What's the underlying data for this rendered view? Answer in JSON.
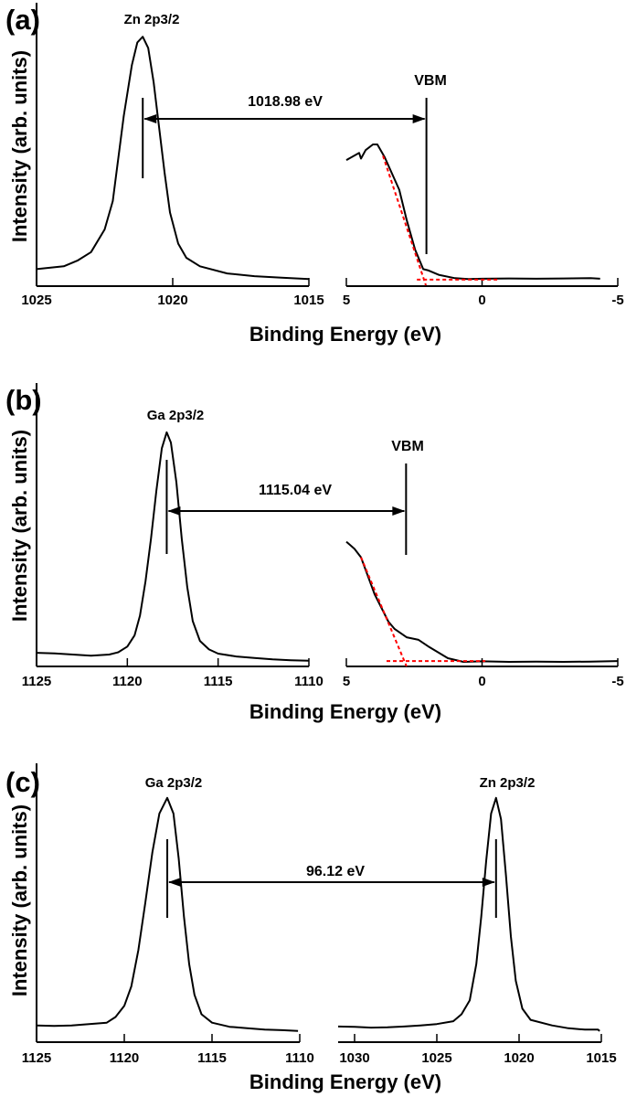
{
  "chart_data": [
    {
      "type": "line",
      "panel_label": "(a)",
      "xlabel": "Binding Energy (eV)",
      "ylabel": "Intensity (arb. units)",
      "grid": false,
      "subplots": [
        {
          "xlim": [
            1025,
            1015
          ],
          "ticks": [
            "1025",
            "1020",
            "1015"
          ],
          "tick_values": [
            1025,
            1020,
            1015
          ],
          "ylim": [
            0,
            1
          ],
          "series": [
            {
              "color": "#000000",
              "points": [
                [
                  1025,
                  0.06
                ],
                [
                  1024,
                  0.07
                ],
                [
                  1023.5,
                  0.09
                ],
                [
                  1023,
                  0.12
                ],
                [
                  1022.5,
                  0.2
                ],
                [
                  1022.2,
                  0.3
                ],
                [
                  1022,
                  0.45
                ],
                [
                  1021.8,
                  0.6
                ],
                [
                  1021.5,
                  0.78
                ],
                [
                  1021.3,
                  0.86
                ],
                [
                  1021.1,
                  0.88
                ],
                [
                  1020.9,
                  0.84
                ],
                [
                  1020.7,
                  0.72
                ],
                [
                  1020.5,
                  0.56
                ],
                [
                  1020.3,
                  0.4
                ],
                [
                  1020.1,
                  0.26
                ],
                [
                  1019.8,
                  0.15
                ],
                [
                  1019.5,
                  0.1
                ],
                [
                  1019,
                  0.07
                ],
                [
                  1018,
                  0.045
                ],
                [
                  1017,
                  0.035
                ],
                [
                  1016,
                  0.03
                ],
                [
                  1015,
                  0.025
                ]
              ]
            }
          ],
          "peak_label": "Zn 2p3/2",
          "marker_at": 1021.1
        },
        {
          "xlim": [
            5,
            -5
          ],
          "ticks": [
            "5",
            "0",
            "-5"
          ],
          "tick_values": [
            5,
            0,
            -5
          ],
          "ylim": [
            0,
            1
          ],
          "series": [
            {
              "color": "#000000",
              "points": [
                [
                  5.0,
                  0.445
                ],
                [
                  4.53,
                  0.47
                ],
                [
                  4.46,
                  0.45
                ],
                [
                  4.29,
                  0.48
                ],
                [
                  4.02,
                  0.5
                ],
                [
                  3.86,
                  0.5
                ],
                [
                  3.59,
                  0.455
                ],
                [
                  3.05,
                  0.34
                ],
                [
                  2.78,
                  0.235
                ],
                [
                  2.47,
                  0.13
                ],
                [
                  2.17,
                  0.06
                ],
                [
                  1.97,
                  0.055
                ],
                [
                  1.6,
                  0.04
                ],
                [
                  1.0,
                  0.028
                ],
                [
                  0.5,
                  0.025
                ],
                [
                  0,
                  0.026
                ],
                [
                  -1,
                  0.027
                ],
                [
                  -2,
                  0.026
                ],
                [
                  -3,
                  0.027
                ],
                [
                  -4,
                  0.028
                ],
                [
                  -4.35,
                  0.026
                ]
              ]
            }
          ],
          "fit_lines": [
            {
              "color": "#ff0000",
              "points": [
                [
                  3.65,
                  0.46
                ],
                [
                  2.07,
                  0.003
                ]
              ]
            },
            {
              "color": "#ff0000",
              "points": [
                [
                  2.4,
                  0.023
                ],
                [
                  -0.56,
                  0.023
                ]
              ]
            }
          ],
          "vbm_label": "VBM",
          "marker_at": 2.05
        }
      ],
      "arrow_label": "1018.98 eV"
    },
    {
      "type": "line",
      "panel_label": "(b)",
      "xlabel": "Binding Energy (eV)",
      "ylabel": "Intensity (arb. units)",
      "grid": false,
      "subplots": [
        {
          "xlim": [
            1125,
            1110
          ],
          "ticks": [
            "1125",
            "1120",
            "1115",
            "1110"
          ],
          "tick_values": [
            1125,
            1120,
            1115,
            1110
          ],
          "ylim": [
            0,
            1
          ],
          "series": [
            {
              "color": "#000000",
              "points": [
                [
                  1125,
                  0.048
                ],
                [
                  1124,
                  0.046
                ],
                [
                  1123,
                  0.042
                ],
                [
                  1122,
                  0.038
                ],
                [
                  1121,
                  0.042
                ],
                [
                  1120.5,
                  0.05
                ],
                [
                  1120,
                  0.07
                ],
                [
                  1119.6,
                  0.11
                ],
                [
                  1119.3,
                  0.18
                ],
                [
                  1119,
                  0.3
                ],
                [
                  1118.7,
                  0.45
                ],
                [
                  1118.4,
                  0.62
                ],
                [
                  1118.1,
                  0.77
                ],
                [
                  1117.83,
                  0.826
                ],
                [
                  1117.6,
                  0.79
                ],
                [
                  1117.3,
                  0.65
                ],
                [
                  1117,
                  0.45
                ],
                [
                  1116.7,
                  0.28
                ],
                [
                  1116.4,
                  0.16
                ],
                [
                  1116,
                  0.09
                ],
                [
                  1115.5,
                  0.06
                ],
                [
                  1115,
                  0.045
                ],
                [
                  1114,
                  0.035
                ],
                [
                  1113,
                  0.03
                ],
                [
                  1112,
                  0.025
                ],
                [
                  1111,
                  0.022
                ],
                [
                  1110,
                  0.02
                ]
              ]
            }
          ],
          "peak_label": "Ga 2p3/2",
          "marker_at": 1117.83
        },
        {
          "xlim": [
            5,
            -5
          ],
          "ticks": [
            "5",
            "0",
            "-5"
          ],
          "tick_values": [
            5,
            0,
            -5
          ],
          "ylim": [
            0,
            1
          ],
          "series": [
            {
              "color": "#000000",
              "points": [
                [
                  5.0,
                  0.44
                ],
                [
                  4.7,
                  0.415
                ],
                [
                  4.46,
                  0.385
                ],
                [
                  3.96,
                  0.255
                ],
                [
                  3.45,
                  0.158
                ],
                [
                  3.22,
                  0.132
                ],
                [
                  2.78,
                  0.103
                ],
                [
                  2.34,
                  0.094
                ],
                [
                  1.94,
                  0.068
                ],
                [
                  1.26,
                  0.029
                ],
                [
                  0.69,
                  0.016
                ],
                [
                  0,
                  0.018
                ],
                [
                  -1,
                  0.016
                ],
                [
                  -2,
                  0.017
                ],
                [
                  -3,
                  0.016
                ],
                [
                  -4,
                  0.017
                ],
                [
                  -5,
                  0.019
                ]
              ]
            }
          ],
          "fit_lines": [
            {
              "color": "#ff0000",
              "points": [
                [
                  4.46,
                  0.385
                ],
                [
                  2.78,
                  0.0
                ]
              ]
            },
            {
              "color": "#ff0000",
              "points": [
                [
                  3.52,
                  0.019
                ],
                [
                  -0.12,
                  0.019
                ]
              ]
            }
          ],
          "vbm_label": "VBM",
          "marker_at": 2.8
        }
      ],
      "arrow_label": "1115.04 eV"
    },
    {
      "type": "line",
      "panel_label": "(c)",
      "xlabel": "Binding Energy (eV)",
      "ylabel": "Intensity (arb. units)",
      "grid": false,
      "subplots": [
        {
          "xlim": [
            1125,
            1110
          ],
          "ticks": [
            "1125",
            "1120",
            "1115",
            "1110"
          ],
          "tick_values": [
            1125,
            1120,
            1115,
            1110
          ],
          "ylim": [
            0,
            1
          ],
          "series": [
            {
              "color": "#000000",
              "points": [
                [
                  1125,
                  0.06
                ],
                [
                  1124,
                  0.058
                ],
                [
                  1123,
                  0.06
                ],
                [
                  1122,
                  0.065
                ],
                [
                  1121,
                  0.07
                ],
                [
                  1120.5,
                  0.09
                ],
                [
                  1120,
                  0.13
                ],
                [
                  1119.6,
                  0.2
                ],
                [
                  1119.2,
                  0.33
                ],
                [
                  1118.8,
                  0.5
                ],
                [
                  1118.4,
                  0.68
                ],
                [
                  1118,
                  0.82
                ],
                [
                  1117.55,
                  0.876
                ],
                [
                  1117.2,
                  0.82
                ],
                [
                  1116.9,
                  0.66
                ],
                [
                  1116.6,
                  0.45
                ],
                [
                  1116.3,
                  0.28
                ],
                [
                  1116,
                  0.17
                ],
                [
                  1115.6,
                  0.1
                ],
                [
                  1115,
                  0.07
                ],
                [
                  1114,
                  0.055
                ],
                [
                  1113,
                  0.05
                ],
                [
                  1112,
                  0.045
                ],
                [
                  1111,
                  0.043
                ],
                [
                  1110.1,
                  0.04
                ]
              ]
            }
          ],
          "peak_label": "Ga 2p3/2",
          "marker_at": 1117.55
        },
        {
          "xlim": [
            1031,
            1015
          ],
          "ticks": [
            "1030",
            "1025",
            "1020",
            "1015"
          ],
          "tick_values": [
            1030,
            1025,
            1020,
            1015
          ],
          "ylim": [
            0,
            1
          ],
          "series": [
            {
              "color": "#000000",
              "points": [
                [
                  1031,
                  0.056
                ],
                [
                  1030,
                  0.055
                ],
                [
                  1029,
                  0.052
                ],
                [
                  1028,
                  0.053
                ],
                [
                  1027,
                  0.056
                ],
                [
                  1026,
                  0.06
                ],
                [
                  1025,
                  0.065
                ],
                [
                  1024,
                  0.075
                ],
                [
                  1023.5,
                  0.1
                ],
                [
                  1023,
                  0.15
                ],
                [
                  1022.6,
                  0.28
                ],
                [
                  1022.3,
                  0.45
                ],
                [
                  1022,
                  0.65
                ],
                [
                  1021.7,
                  0.82
                ],
                [
                  1021.4,
                  0.876
                ],
                [
                  1021.1,
                  0.8
                ],
                [
                  1020.8,
                  0.6
                ],
                [
                  1020.5,
                  0.38
                ],
                [
                  1020.2,
                  0.22
                ],
                [
                  1019.8,
                  0.12
                ],
                [
                  1019.3,
                  0.08
                ],
                [
                  1018,
                  0.06
                ],
                [
                  1017,
                  0.05
                ],
                [
                  1016,
                  0.045
                ],
                [
                  1015.2,
                  0.045
                ],
                [
                  1015.1,
                  0.04
                ]
              ]
            }
          ],
          "peak_label": "Zn 2p3/2",
          "marker_at": 1021.4
        }
      ],
      "arrow_label": "96.12 eV"
    }
  ]
}
